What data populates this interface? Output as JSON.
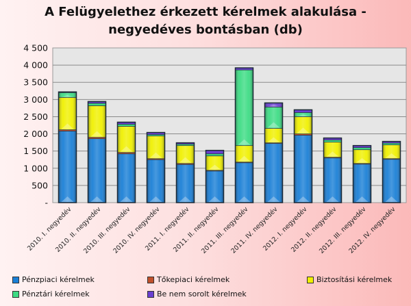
{
  "chart_data": {
    "type": "bar",
    "stacked": true,
    "title": "A Felügyelethez érkezett kérelmek alakulása - negyedéves bontásban (db)",
    "title_lines": [
      "A Felügyelethez érkezett kérelmek alakulása -",
      "negyedéves bontásban (db)"
    ],
    "xlabel": "",
    "ylabel": "",
    "ylim": [
      0,
      4500
    ],
    "yticks": [
      0,
      500,
      1000,
      1500,
      2000,
      2500,
      3000,
      3500,
      4000,
      4500
    ],
    "ytick_labels": [
      "-",
      "500",
      "1 000",
      "1 500",
      "2 000",
      "2 500",
      "3 000",
      "3 500",
      "4 000",
      "4 500"
    ],
    "grid": true,
    "legend_position": "bottom",
    "categories": [
      "2010. I. negyedév",
      "2010. II. negyedév",
      "2010. III. negyedév",
      "2010. IV. negyedév",
      "2011. I. negyedév",
      "2011. II. negyedév",
      "2011. III. negyedév",
      "2011. IV. negyedév",
      "2012. I. negyedév",
      "2012. II. negyedév",
      "2012. III. negyedév",
      "2012. IV. negyedév"
    ],
    "series": [
      {
        "name": "Pénzpiaci kérelmek",
        "color": "#1a7fd6",
        "values": [
          2080,
          1860,
          1420,
          1250,
          1110,
          920,
          1160,
          1720,
          1960,
          1300,
          1120,
          1260
        ]
      },
      {
        "name": "Tőkepiaci kérelmek",
        "color": "#c0502a",
        "values": [
          40,
          40,
          40,
          30,
          30,
          20,
          20,
          20,
          40,
          20,
          20,
          20
        ]
      },
      {
        "name": "Biztosítási kérelmek",
        "color": "#f0f000",
        "values": [
          940,
          920,
          760,
          660,
          520,
          420,
          480,
          420,
          500,
          440,
          400,
          400
        ]
      },
      {
        "name": "Pénztári kérelmek",
        "color": "#3ddc84",
        "values": [
          140,
          70,
          60,
          40,
          40,
          60,
          2200,
          620,
          120,
          60,
          60,
          50
        ]
      },
      {
        "name": "Be nem sorolt kérelmek",
        "color": "#6a3fd0",
        "values": [
          20,
          50,
          60,
          60,
          40,
          100,
          60,
          120,
          80,
          60,
          60,
          50
        ]
      }
    ]
  }
}
